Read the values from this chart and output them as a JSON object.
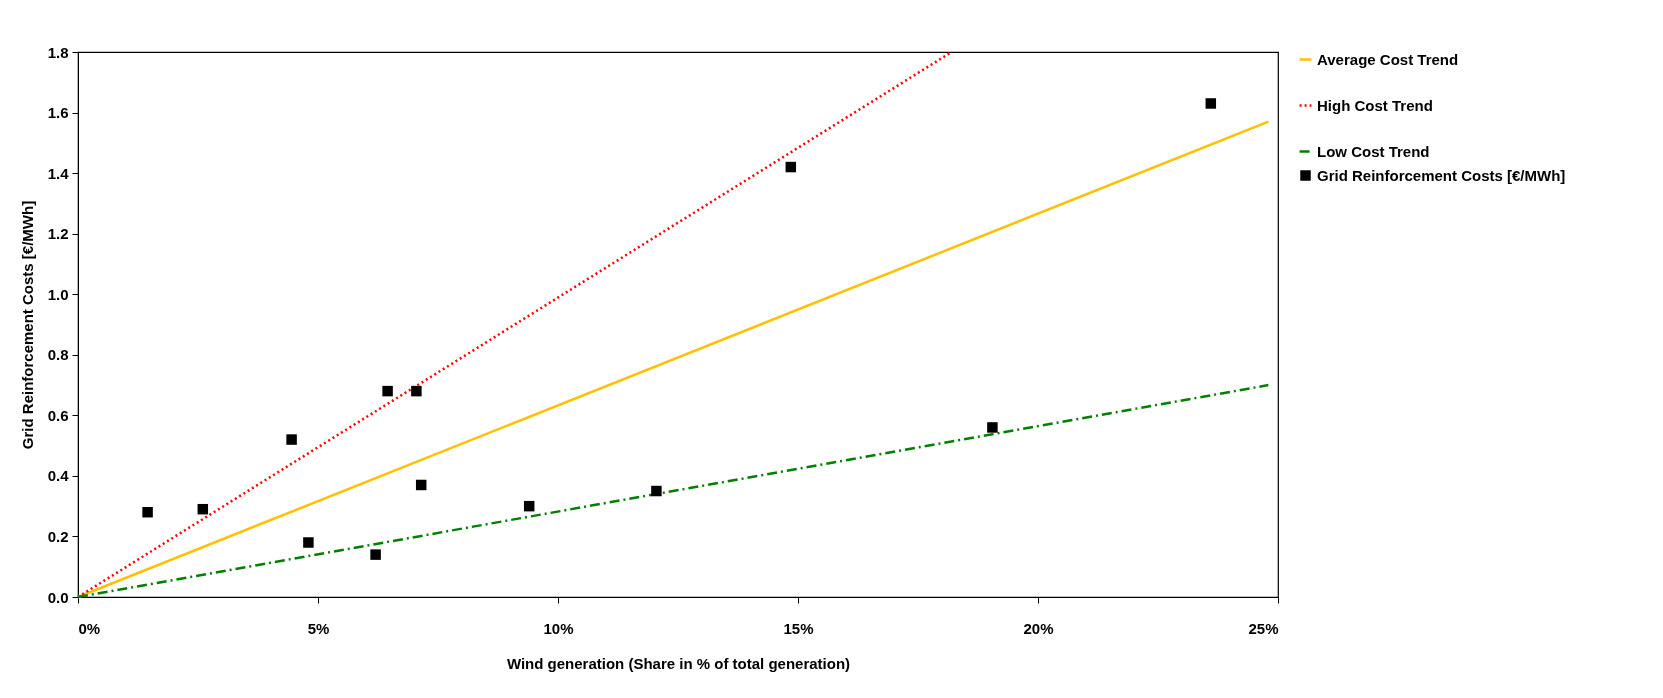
{
  "chart_data": {
    "type": "scatter",
    "xlabel": "Wind generation (Share in % of total generation)",
    "ylabel": "Grid Reinforcement Costs [€/MWh]",
    "xlim": [
      0,
      25
    ],
    "xticks": [
      {
        "value": 0,
        "label": "0%"
      },
      {
        "value": 5,
        "label": "5%"
      },
      {
        "value": 10,
        "label": "10%"
      },
      {
        "value": 15,
        "label": "15%"
      },
      {
        "value": 20,
        "label": "20%"
      },
      {
        "value": 25,
        "label": "25%"
      }
    ],
    "ylim": [
      0,
      1.8
    ],
    "yticks": [
      {
        "value": 0,
        "label": "0.0"
      },
      {
        "value": 0.2,
        "label": "0.2"
      },
      {
        "value": 0.4,
        "label": "0.4"
      },
      {
        "value": 0.6,
        "label": "0.6"
      },
      {
        "value": 0.8,
        "label": "0.8"
      },
      {
        "value": 1,
        "label": "1.0"
      },
      {
        "value": 1.2,
        "label": "1.2"
      },
      {
        "value": 1.4,
        "label": "1.4"
      },
      {
        "value": 1.6,
        "label": "1.6"
      },
      {
        "value": 1.8,
        "label": "1.8"
      }
    ],
    "grid": false,
    "legend": "right",
    "series": [
      {
        "name": "Average Cost Trend",
        "type": "line",
        "line_style": "solid",
        "marker": "none",
        "color": "#ffc000",
        "x": [
          0,
          24.8
        ],
        "values": [
          0,
          1.57
        ]
      },
      {
        "name": "High Cost Trend",
        "type": "line",
        "line_style": "dotted",
        "marker": "none",
        "color": "#ff0000",
        "x": [
          0,
          18.2
        ],
        "values": [
          0,
          1.8
        ]
      },
      {
        "name": "Low Cost Trend",
        "type": "line",
        "line_style": "dashdot",
        "marker": "none",
        "color": "#008000",
        "x": [
          0,
          24.8
        ],
        "values": [
          0,
          0.7
        ]
      },
      {
        "name": "Grid Reinforcement Costs [€/MWh]",
        "marker": "square",
        "color": "#000000",
        "x": [
          1.45,
          2.6,
          4.45,
          4.8,
          6.2,
          6.45,
          7.05,
          7.15,
          9.4,
          12.05,
          14.85,
          19.05,
          23.6
        ],
        "values": [
          0.28,
          0.29,
          0.52,
          0.18,
          0.14,
          0.68,
          0.68,
          0.37,
          0.3,
          0.35,
          1.42,
          0.56,
          1.63
        ]
      }
    ]
  }
}
